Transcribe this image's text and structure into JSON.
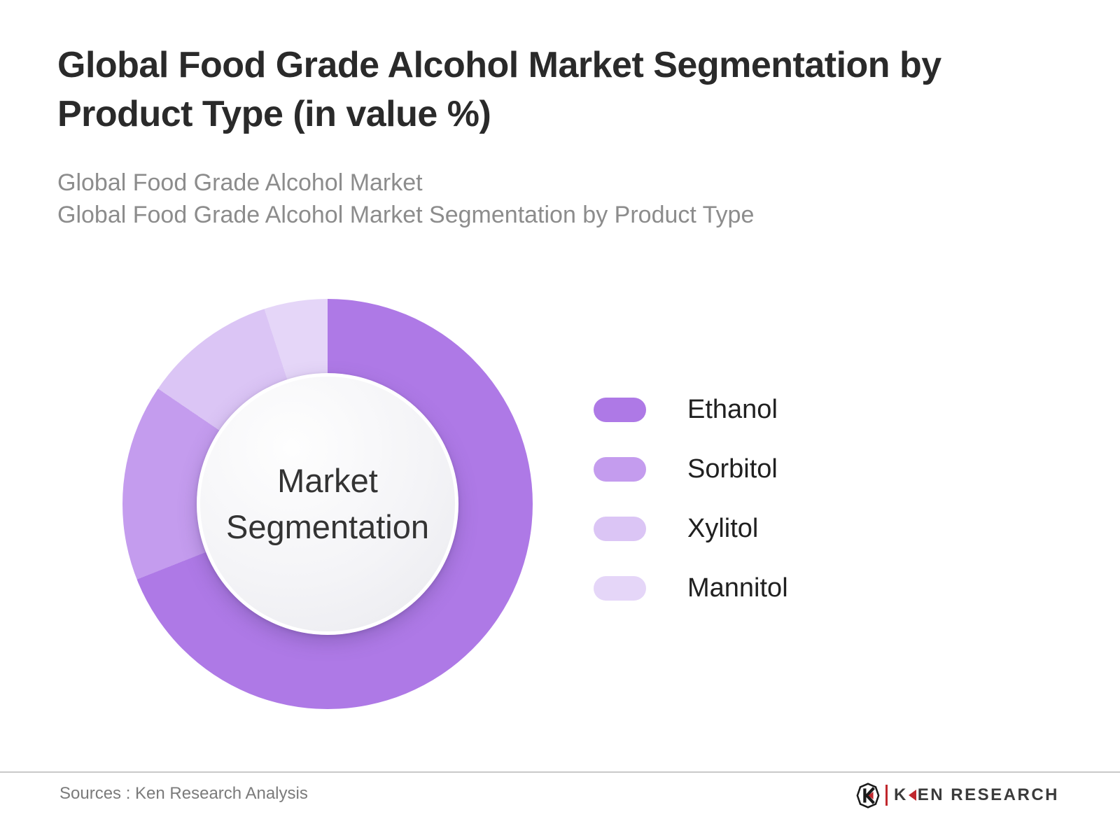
{
  "header": {
    "title_lines": [
      "Global Food Grade Alcohol Market Segmentation by",
      "Product Type (in value %)"
    ],
    "subtitle_lines": [
      "Global Food Grade Alcohol Market",
      "Global Food Grade Alcohol Market Segmentation by Product Type"
    ]
  },
  "chart_data": {
    "type": "pie",
    "variant": "donut",
    "title": "Global Food Grade Alcohol Market Segmentation by Product Type (in value %)",
    "center_label": [
      "Market",
      "Segmentation"
    ],
    "legend_position": "right",
    "start_angle_deg": 0,
    "direction": "clockwise",
    "segments": [
      {
        "label": "Ethanol",
        "value_pct": 69.0,
        "color": "#ae79e6"
      },
      {
        "label": "Sorbitol",
        "value_pct": 15.5,
        "color": "#c49cee"
      },
      {
        "label": "Xylitol",
        "value_pct": 10.5,
        "color": "#dbc5f5"
      },
      {
        "label": "Mannitol",
        "value_pct": 5.0,
        "color": "#e5d6f8"
      }
    ]
  },
  "footer": {
    "sources": "Sources : Ken Research Analysis",
    "brand": {
      "icon_letter": "K",
      "wordmark_k": "K",
      "wordmark_rest": "EN RESEARCH",
      "accent_color": "#c0272d",
      "text_color": "#3b3b3b"
    }
  }
}
